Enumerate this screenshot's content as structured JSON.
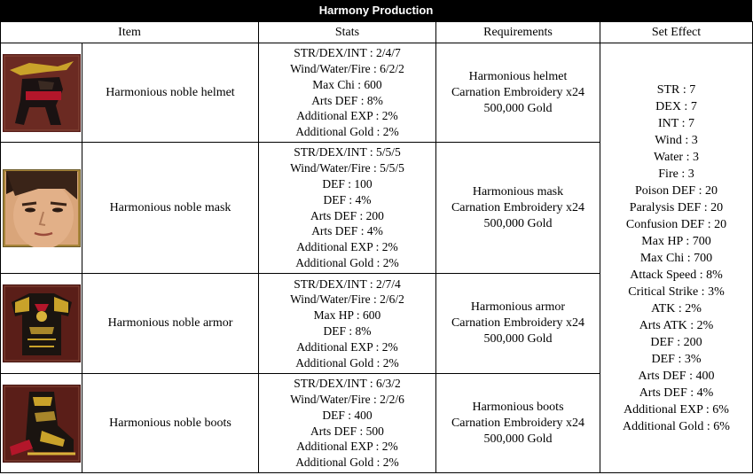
{
  "title": "Harmony Production",
  "headers": {
    "item": "Item",
    "stats": "Stats",
    "requirements": "Requirements",
    "set_effect": "Set Effect"
  },
  "rows": [
    {
      "name": "Harmonious noble helmet",
      "icon": "helmet-icon",
      "stats": [
        "STR/DEX/INT : 2/4/7",
        "Wind/Water/Fire : 6/2/2",
        "Max Chi : 600",
        "Arts DEF : 8%",
        "Additional EXP : 2%",
        "Additional Gold : 2%"
      ],
      "requirements": [
        "Harmonious helmet",
        "Carnation Embroidery x24",
        "500,000 Gold"
      ]
    },
    {
      "name": "Harmonious noble mask",
      "icon": "mask-icon",
      "stats": [
        "STR/DEX/INT : 5/5/5",
        "Wind/Water/Fire : 5/5/5",
        "DEF : 100",
        "DEF : 4%",
        "Arts DEF : 200",
        "Arts DEF : 4%",
        "Additional EXP : 2%",
        "Additional Gold : 2%"
      ],
      "requirements": [
        "Harmonious mask",
        "Carnation Embroidery x24",
        "500,000 Gold"
      ]
    },
    {
      "name": "Harmonious noble armor",
      "icon": "armor-icon",
      "stats": [
        "STR/DEX/INT : 2/7/4",
        "Wind/Water/Fire : 2/6/2",
        "Max HP : 600",
        "DEF : 8%",
        "Additional EXP : 2%",
        "Additional Gold : 2%"
      ],
      "requirements": [
        "Harmonious armor",
        "Carnation Embroidery x24",
        "500,000 Gold"
      ]
    },
    {
      "name": "Harmonious noble boots",
      "icon": "boots-icon",
      "stats": [
        "STR/DEX/INT : 6/3/2",
        "Wind/Water/Fire : 2/2/6",
        "DEF : 400",
        "Arts DEF : 500",
        "Additional EXP : 2%",
        "Additional Gold : 2%"
      ],
      "requirements": [
        "Harmonious boots",
        "Carnation Embroidery x24",
        "500,000 Gold"
      ]
    }
  ],
  "set_effect": [
    "STR : 7",
    "DEX : 7",
    "INT : 7",
    "Wind : 3",
    "Water : 3",
    "Fire : 3",
    "Poison DEF : 20",
    "Paralysis DEF : 20",
    "Confusion DEF : 20",
    "Max HP : 700",
    "Max Chi : 700",
    "Attack Speed : 8%",
    "Critical Strike : 3%",
    "ATK : 2%",
    "Arts ATK : 2%",
    "DEF : 200",
    "DEF : 3%",
    "Arts DEF : 400",
    "Arts DEF : 4%",
    "Additional EXP : 6%",
    "Additional Gold : 6%"
  ]
}
